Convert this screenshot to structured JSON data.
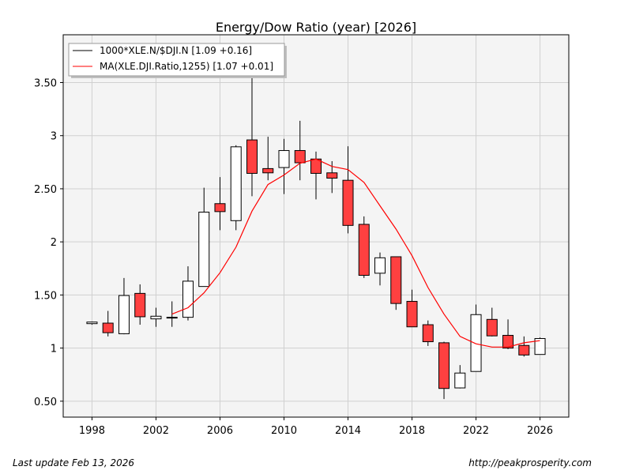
{
  "chart_data": {
    "type": "candlestick",
    "title": "Energy/Dow Ratio (year)  [2026]",
    "xlabel": "",
    "ylabel": "",
    "xlim": [
      1996.2,
      2027.8
    ],
    "ylim": [
      0.35,
      3.95
    ],
    "x_ticks": [
      1998,
      2002,
      2006,
      2010,
      2014,
      2018,
      2022,
      2026
    ],
    "y_ticks": [
      0.5,
      1,
      1.5,
      2,
      2.5,
      3,
      3.5
    ],
    "y_tick_labels": [
      "0.50",
      "1",
      "1.50",
      "2",
      "2.50",
      "3",
      "3.50"
    ],
    "grid": true,
    "legend_position": "top-left",
    "series": [
      {
        "name": "1000*XLE.N/$DJI.N [1.09 +0.16]",
        "kind": "ohlc",
        "colors": {
          "up": "#ffffff",
          "down": "#ff4040",
          "edge": "#000000"
        },
        "data": [
          {
            "x": 1998,
            "open": 1.23,
            "high": 1.25,
            "low": 1.22,
            "close": 1.245
          },
          {
            "x": 1999,
            "open": 1.235,
            "high": 1.35,
            "low": 1.11,
            "close": 1.145
          },
          {
            "x": 2000,
            "open": 1.135,
            "high": 1.66,
            "low": 1.13,
            "close": 1.495
          },
          {
            "x": 2001,
            "open": 1.515,
            "high": 1.6,
            "low": 1.22,
            "close": 1.295
          },
          {
            "x": 2002,
            "open": 1.275,
            "high": 1.38,
            "low": 1.2,
            "close": 1.3
          },
          {
            "x": 2003,
            "open": 1.285,
            "high": 1.44,
            "low": 1.2,
            "close": 1.29
          },
          {
            "x": 2004,
            "open": 1.29,
            "high": 1.77,
            "low": 1.26,
            "close": 1.63
          },
          {
            "x": 2005,
            "open": 1.58,
            "high": 2.51,
            "low": 1.58,
            "close": 2.28
          },
          {
            "x": 2006,
            "open": 2.36,
            "high": 2.61,
            "low": 2.11,
            "close": 2.285
          },
          {
            "x": 2007,
            "open": 2.2,
            "high": 2.91,
            "low": 2.11,
            "close": 2.895
          },
          {
            "x": 2008,
            "open": 2.96,
            "high": 3.85,
            "low": 2.43,
            "close": 2.645
          },
          {
            "x": 2009,
            "open": 2.69,
            "high": 2.99,
            "low": 2.58,
            "close": 2.65
          },
          {
            "x": 2010,
            "open": 2.7,
            "high": 2.97,
            "low": 2.45,
            "close": 2.86
          },
          {
            "x": 2011,
            "open": 2.86,
            "high": 3.14,
            "low": 2.58,
            "close": 2.745
          },
          {
            "x": 2012,
            "open": 2.78,
            "high": 2.85,
            "low": 2.4,
            "close": 2.645
          },
          {
            "x": 2013,
            "open": 2.65,
            "high": 2.76,
            "low": 2.46,
            "close": 2.6
          },
          {
            "x": 2014,
            "open": 2.58,
            "high": 2.9,
            "low": 2.08,
            "close": 2.155
          },
          {
            "x": 2015,
            "open": 2.165,
            "high": 2.24,
            "low": 1.66,
            "close": 1.685
          },
          {
            "x": 2016,
            "open": 1.705,
            "high": 1.9,
            "low": 1.59,
            "close": 1.85
          },
          {
            "x": 2017,
            "open": 1.86,
            "high": 1.86,
            "low": 1.36,
            "close": 1.42
          },
          {
            "x": 2018,
            "open": 1.44,
            "high": 1.55,
            "low": 1.2,
            "close": 1.2
          },
          {
            "x": 2019,
            "open": 1.22,
            "high": 1.26,
            "low": 1.02,
            "close": 1.06
          },
          {
            "x": 2020,
            "open": 1.05,
            "high": 1.06,
            "low": 0.52,
            "close": 0.62
          },
          {
            "x": 2021,
            "open": 0.625,
            "high": 0.84,
            "low": 0.62,
            "close": 0.765
          },
          {
            "x": 2022,
            "open": 0.78,
            "high": 1.41,
            "low": 0.78,
            "close": 1.315
          },
          {
            "x": 2023,
            "open": 1.27,
            "high": 1.38,
            "low": 1.11,
            "close": 1.115
          },
          {
            "x": 2024,
            "open": 1.12,
            "high": 1.27,
            "low": 0.99,
            "close": 1.0
          },
          {
            "x": 2025,
            "open": 1.025,
            "high": 1.11,
            "low": 0.92,
            "close": 0.935
          },
          {
            "x": 2026,
            "open": 0.94,
            "high": 1.1,
            "low": 0.94,
            "close": 1.09
          }
        ]
      },
      {
        "name": "MA(XLE.DJI.Ratio,1255) [1.07 +0.01]",
        "kind": "line",
        "color": "#ff0000",
        "x": [
          2003,
          2004,
          2005,
          2006,
          2007,
          2008,
          2009,
          2010,
          2011,
          2012,
          2013,
          2014,
          2015,
          2016,
          2017,
          2018,
          2019,
          2020,
          2021,
          2022,
          2023,
          2024,
          2025,
          2026
        ],
        "values": [
          1.32,
          1.38,
          1.52,
          1.71,
          1.95,
          2.29,
          2.54,
          2.63,
          2.74,
          2.78,
          2.71,
          2.68,
          2.56,
          2.34,
          2.12,
          1.87,
          1.57,
          1.32,
          1.11,
          1.04,
          1.01,
          1.01,
          1.05,
          1.07
        ]
      }
    ]
  },
  "footer": {
    "left": "Last update Feb 13, 2026",
    "right": "http://peakprosperity.com"
  }
}
